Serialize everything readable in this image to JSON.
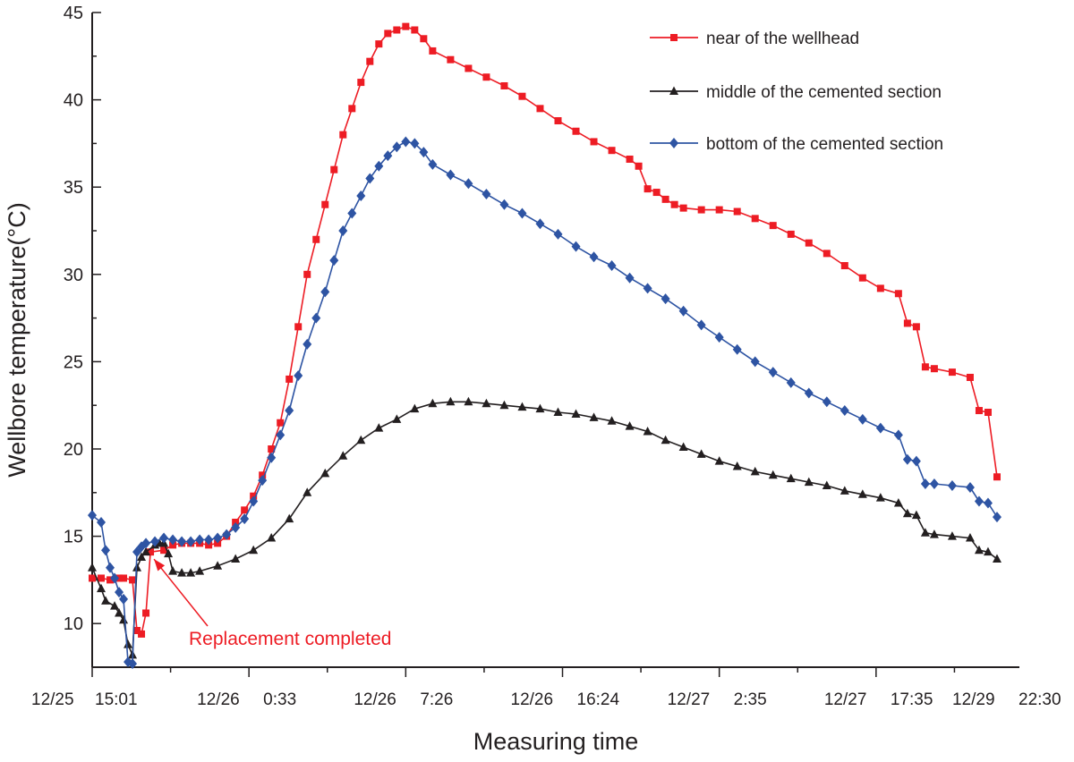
{
  "chart_data": {
    "type": "line",
    "title": "",
    "xlabel": "Measuring time",
    "ylabel": "Wellbore temperature(°C)",
    "x_unit": "hours since 12/25 15:01",
    "xlim": [
      0,
      103.5
    ],
    "ylim": [
      7.5,
      45
    ],
    "y_ticks": [
      10,
      15,
      20,
      25,
      30,
      35,
      40,
      45
    ],
    "x_tick_labels": [
      {
        "x": 0,
        "date": "12/25",
        "time": "15:01"
      },
      {
        "x": 17.5,
        "date": "12/26",
        "time": "0:33"
      },
      {
        "x": 35,
        "date": "12/26",
        "time": "7:26"
      },
      {
        "x": 52.5,
        "date": "12/26",
        "time": "16:24"
      },
      {
        "x": 70,
        "date": "12/27",
        "time": "2:35"
      },
      {
        "x": 87.5,
        "date": "12/27",
        "time": "17:35"
      },
      {
        "x": 105,
        "date": "12/29",
        "time": "22:30"
      }
    ],
    "legend_position": "top-right",
    "series": [
      {
        "name": "near of the wellhead",
        "color": "#ed1c24",
        "marker": "square",
        "points": [
          [
            0,
            12.6
          ],
          [
            1,
            12.6
          ],
          [
            2,
            12.5
          ],
          [
            3,
            12.6
          ],
          [
            3.5,
            12.6
          ],
          [
            4.5,
            12.5
          ],
          [
            5,
            9.6
          ],
          [
            5.5,
            9.4
          ],
          [
            6,
            10.6
          ],
          [
            6.5,
            14.1
          ],
          [
            8,
            14.2
          ],
          [
            9,
            14.5
          ],
          [
            10,
            14.6
          ],
          [
            11,
            14.6
          ],
          [
            12,
            14.6
          ],
          [
            13,
            14.5
          ],
          [
            14,
            14.6
          ],
          [
            15,
            15
          ],
          [
            16,
            15.8
          ],
          [
            17,
            16.5
          ],
          [
            18,
            17.3
          ],
          [
            19,
            18.5
          ],
          [
            20,
            20
          ],
          [
            21,
            21.5
          ],
          [
            22,
            24
          ],
          [
            23,
            27
          ],
          [
            24,
            30
          ],
          [
            25,
            32
          ],
          [
            26,
            34
          ],
          [
            27,
            36
          ],
          [
            28,
            38
          ],
          [
            29,
            39.5
          ],
          [
            30,
            41
          ],
          [
            31,
            42.2
          ],
          [
            32,
            43.2
          ],
          [
            33,
            43.8
          ],
          [
            34,
            44
          ],
          [
            35,
            44.2
          ],
          [
            36,
            44
          ],
          [
            37,
            43.5
          ],
          [
            38,
            42.8
          ],
          [
            40,
            42.3
          ],
          [
            42,
            41.8
          ],
          [
            44,
            41.3
          ],
          [
            46,
            40.8
          ],
          [
            48,
            40.2
          ],
          [
            50,
            39.5
          ],
          [
            52,
            38.8
          ],
          [
            54,
            38.2
          ],
          [
            56,
            37.6
          ],
          [
            58,
            37.1
          ],
          [
            60,
            36.6
          ],
          [
            61,
            36.2
          ],
          [
            62,
            34.9
          ],
          [
            63,
            34.7
          ],
          [
            64,
            34.3
          ],
          [
            65,
            34
          ],
          [
            66,
            33.8
          ],
          [
            68,
            33.7
          ],
          [
            70,
            33.7
          ],
          [
            72,
            33.6
          ],
          [
            74,
            33.2
          ],
          [
            76,
            32.8
          ],
          [
            78,
            32.3
          ],
          [
            80,
            31.8
          ],
          [
            82,
            31.2
          ],
          [
            84,
            30.5
          ],
          [
            86,
            29.8
          ],
          [
            88,
            29.2
          ],
          [
            90,
            28.9
          ],
          [
            91,
            27.2
          ],
          [
            92,
            27
          ],
          [
            93,
            24.7
          ],
          [
            94,
            24.6
          ],
          [
            96,
            24.4
          ],
          [
            98,
            24.1
          ],
          [
            99,
            22.2
          ],
          [
            100,
            22.1
          ],
          [
            101,
            18.4
          ]
        ]
      },
      {
        "name": "middle of the cemented section",
        "color": "#231f20",
        "marker": "triangle",
        "points": [
          [
            0,
            13.2
          ],
          [
            1,
            12
          ],
          [
            1.5,
            11.3
          ],
          [
            2.5,
            11
          ],
          [
            3,
            10.6
          ],
          [
            3.5,
            10.2
          ],
          [
            4,
            8.8
          ],
          [
            4.5,
            8.2
          ],
          [
            5,
            13.2
          ],
          [
            5.5,
            13.8
          ],
          [
            6,
            14.1
          ],
          [
            7,
            14.5
          ],
          [
            7.5,
            14.6
          ],
          [
            8,
            14.6
          ],
          [
            8.5,
            14
          ],
          [
            9,
            13
          ],
          [
            10,
            12.9
          ],
          [
            11,
            12.9
          ],
          [
            12,
            13
          ],
          [
            14,
            13.3
          ],
          [
            16,
            13.7
          ],
          [
            18,
            14.2
          ],
          [
            20,
            14.9
          ],
          [
            22,
            16
          ],
          [
            24,
            17.5
          ],
          [
            26,
            18.6
          ],
          [
            28,
            19.6
          ],
          [
            30,
            20.5
          ],
          [
            32,
            21.2
          ],
          [
            34,
            21.7
          ],
          [
            36,
            22.3
          ],
          [
            38,
            22.6
          ],
          [
            40,
            22.7
          ],
          [
            42,
            22.7
          ],
          [
            44,
            22.6
          ],
          [
            46,
            22.5
          ],
          [
            48,
            22.4
          ],
          [
            50,
            22.3
          ],
          [
            52,
            22.1
          ],
          [
            54,
            22
          ],
          [
            56,
            21.8
          ],
          [
            58,
            21.6
          ],
          [
            60,
            21.3
          ],
          [
            62,
            21
          ],
          [
            64,
            20.5
          ],
          [
            66,
            20.1
          ],
          [
            68,
            19.7
          ],
          [
            70,
            19.3
          ],
          [
            72,
            19
          ],
          [
            74,
            18.7
          ],
          [
            76,
            18.5
          ],
          [
            78,
            18.3
          ],
          [
            80,
            18.1
          ],
          [
            82,
            17.9
          ],
          [
            84,
            17.6
          ],
          [
            86,
            17.4
          ],
          [
            88,
            17.2
          ],
          [
            90,
            16.9
          ],
          [
            91,
            16.3
          ],
          [
            92,
            16.2
          ],
          [
            93,
            15.2
          ],
          [
            94,
            15.1
          ],
          [
            96,
            15
          ],
          [
            98,
            14.9
          ],
          [
            99,
            14.2
          ],
          [
            100,
            14.1
          ],
          [
            101,
            13.7
          ]
        ]
      },
      {
        "name": "bottom of the cemented section",
        "color": "#2e54a3",
        "marker": "diamond",
        "points": [
          [
            0,
            16.2
          ],
          [
            1,
            15.8
          ],
          [
            1.5,
            14.2
          ],
          [
            2,
            13.2
          ],
          [
            2.5,
            12.6
          ],
          [
            3,
            11.8
          ],
          [
            3.5,
            11.4
          ],
          [
            4,
            7.8
          ],
          [
            4.5,
            7.7
          ],
          [
            5,
            14.1
          ],
          [
            5.5,
            14.4
          ],
          [
            6,
            14.6
          ],
          [
            7,
            14.7
          ],
          [
            8,
            14.9
          ],
          [
            9,
            14.8
          ],
          [
            10,
            14.7
          ],
          [
            11,
            14.7
          ],
          [
            12,
            14.8
          ],
          [
            13,
            14.8
          ],
          [
            14,
            14.9
          ],
          [
            15,
            15.1
          ],
          [
            16,
            15.5
          ],
          [
            17,
            16
          ],
          [
            18,
            17
          ],
          [
            19,
            18.2
          ],
          [
            20,
            19.5
          ],
          [
            21,
            20.8
          ],
          [
            22,
            22.2
          ],
          [
            23,
            24.2
          ],
          [
            24,
            26
          ],
          [
            25,
            27.5
          ],
          [
            26,
            29
          ],
          [
            27,
            30.8
          ],
          [
            28,
            32.5
          ],
          [
            29,
            33.5
          ],
          [
            30,
            34.5
          ],
          [
            31,
            35.5
          ],
          [
            32,
            36.2
          ],
          [
            33,
            36.8
          ],
          [
            34,
            37.3
          ],
          [
            35,
            37.6
          ],
          [
            36,
            37.5
          ],
          [
            37,
            37
          ],
          [
            38,
            36.3
          ],
          [
            40,
            35.7
          ],
          [
            42,
            35.2
          ],
          [
            44,
            34.6
          ],
          [
            46,
            34
          ],
          [
            48,
            33.5
          ],
          [
            50,
            32.9
          ],
          [
            52,
            32.3
          ],
          [
            54,
            31.6
          ],
          [
            56,
            31
          ],
          [
            58,
            30.5
          ],
          [
            60,
            29.8
          ],
          [
            62,
            29.2
          ],
          [
            64,
            28.6
          ],
          [
            66,
            27.9
          ],
          [
            68,
            27.1
          ],
          [
            70,
            26.4
          ],
          [
            72,
            25.7
          ],
          [
            74,
            25
          ],
          [
            76,
            24.4
          ],
          [
            78,
            23.8
          ],
          [
            80,
            23.2
          ],
          [
            82,
            22.7
          ],
          [
            84,
            22.2
          ],
          [
            86,
            21.7
          ],
          [
            88,
            21.2
          ],
          [
            90,
            20.8
          ],
          [
            91,
            19.4
          ],
          [
            92,
            19.3
          ],
          [
            93,
            18
          ],
          [
            94,
            18
          ],
          [
            96,
            17.9
          ],
          [
            98,
            17.8
          ],
          [
            99,
            17
          ],
          [
            100,
            16.9
          ],
          [
            101,
            16.1
          ]
        ]
      }
    ],
    "annotations": [
      {
        "text": "Replacement completed",
        "color": "#ed1c24",
        "points_to": [
          6.5,
          14.1
        ]
      }
    ]
  }
}
